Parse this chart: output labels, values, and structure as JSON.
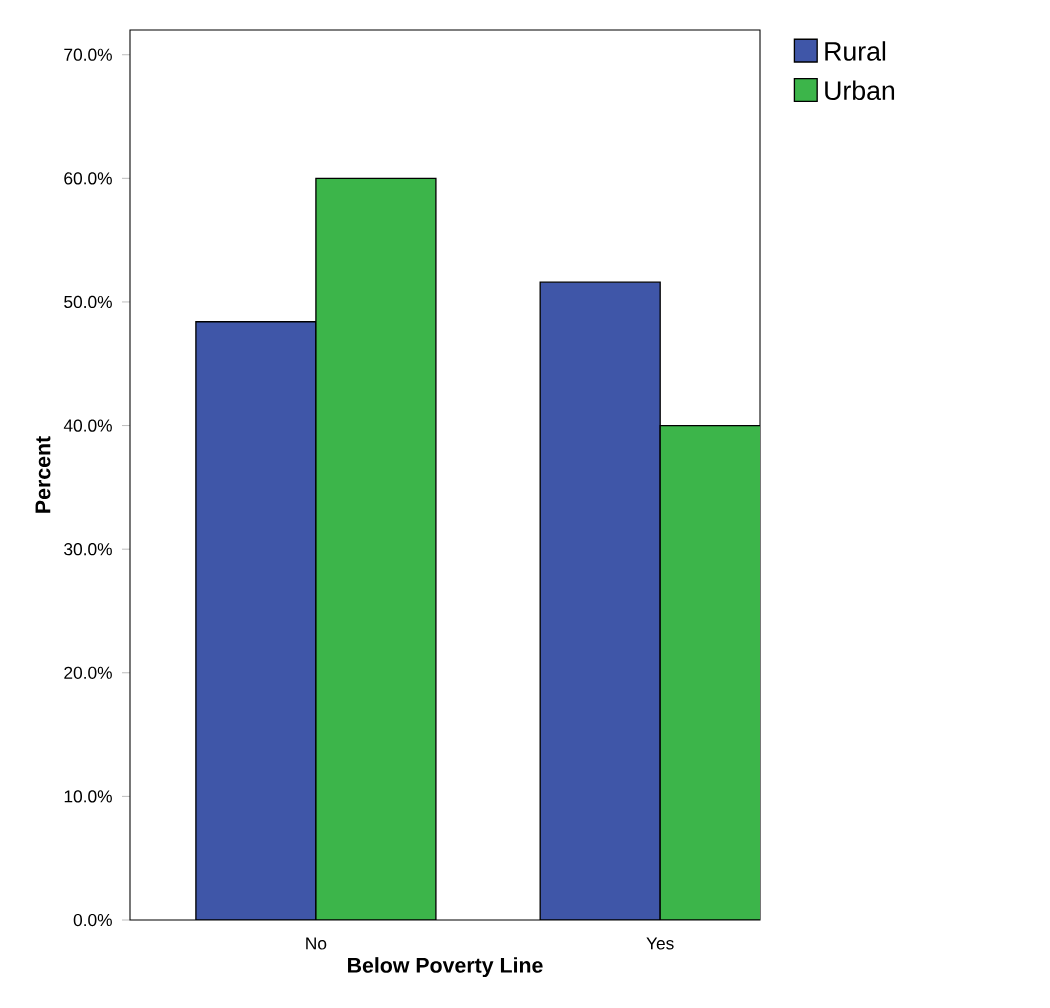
{
  "chart_data": {
    "type": "bar",
    "xlabel": "Below Poverty Line",
    "ylabel": "Percent",
    "categories": [
      "No",
      "Yes"
    ],
    "series": [
      {
        "name": "Rural",
        "color": "#3f56a8",
        "values": [
          48.4,
          51.6
        ]
      },
      {
        "name": "Urban",
        "color": "#3cb54a",
        "values": [
          60.0,
          40.0
        ]
      }
    ],
    "ylim": [
      0,
      72
    ],
    "yticks": [
      {
        "value": 0,
        "label": "0.0%"
      },
      {
        "value": 10,
        "label": "10.0%"
      },
      {
        "value": 20,
        "label": "20.0%"
      },
      {
        "value": 30,
        "label": "30.0%"
      },
      {
        "value": 40,
        "label": "40.0%"
      },
      {
        "value": 50,
        "label": "50.0%"
      },
      {
        "value": 60,
        "label": "60.0%"
      },
      {
        "value": 70,
        "label": "70.0%"
      }
    ],
    "grid": false,
    "legend": "top right"
  }
}
